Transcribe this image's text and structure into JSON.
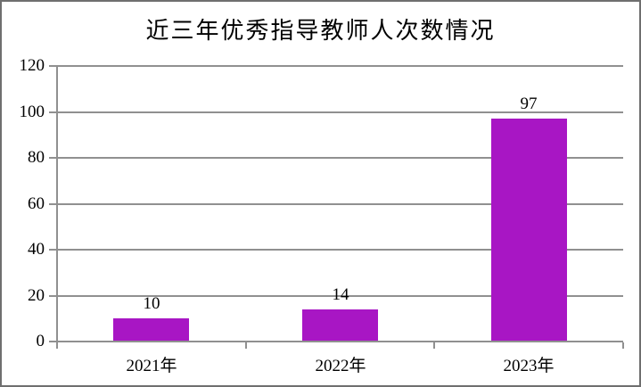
{
  "chart_data": {
    "type": "bar",
    "title": "近三年优秀指导教师人次数情况",
    "categories": [
      "2021年",
      "2022年",
      "2023年"
    ],
    "values": [
      10,
      14,
      97
    ],
    "data_labels": [
      "10",
      "14",
      "97"
    ],
    "xlabel": "",
    "ylabel": "",
    "ylim": [
      0,
      120
    ],
    "y_ticks": [
      0,
      20,
      40,
      60,
      80,
      100,
      120
    ],
    "grid": true,
    "legend": false,
    "bar_color": "#a816c4",
    "axis_color": "#909090",
    "grid_color": "#909090",
    "text_color": "#000000",
    "outer_border_color": "#6f6f6f",
    "background_color": "#ffffff"
  }
}
